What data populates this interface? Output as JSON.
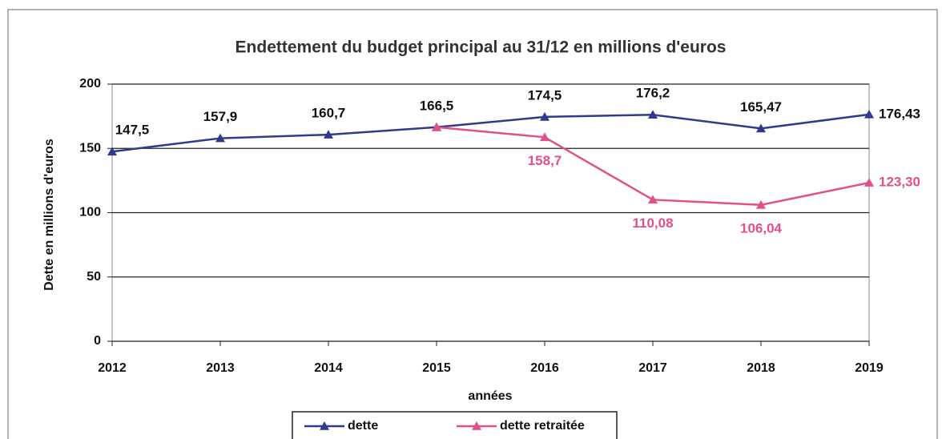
{
  "chart_data": {
    "type": "line",
    "title": "Endettement du budget principal au 31/12 en millions d'euros",
    "xlabel": "années",
    "ylabel": "Dette en millions d'euros",
    "categories": [
      "2012",
      "2013",
      "2014",
      "2015",
      "2016",
      "2017",
      "2018",
      "2019"
    ],
    "series": [
      {
        "name": "dette",
        "color": "#2f3a8f",
        "values": [
          147.5,
          157.9,
          160.7,
          166.5,
          174.5,
          176.2,
          165.47,
          176.43
        ],
        "value_labels": [
          "147,5",
          "157,9",
          "160,7",
          "166,5",
          "174,5",
          "176,2",
          "165,47",
          "176,43"
        ]
      },
      {
        "name": "dette retraitée",
        "color": "#e0508a",
        "values": [
          null,
          null,
          null,
          166.5,
          158.7,
          110.08,
          106.04,
          123.3
        ],
        "value_labels": [
          null,
          null,
          null,
          null,
          "158,7",
          "110,08",
          "106,04",
          "123,30"
        ]
      }
    ],
    "ylim": [
      0,
      200
    ],
    "yticks": [
      0,
      50,
      100,
      150,
      200
    ],
    "grid": true
  }
}
